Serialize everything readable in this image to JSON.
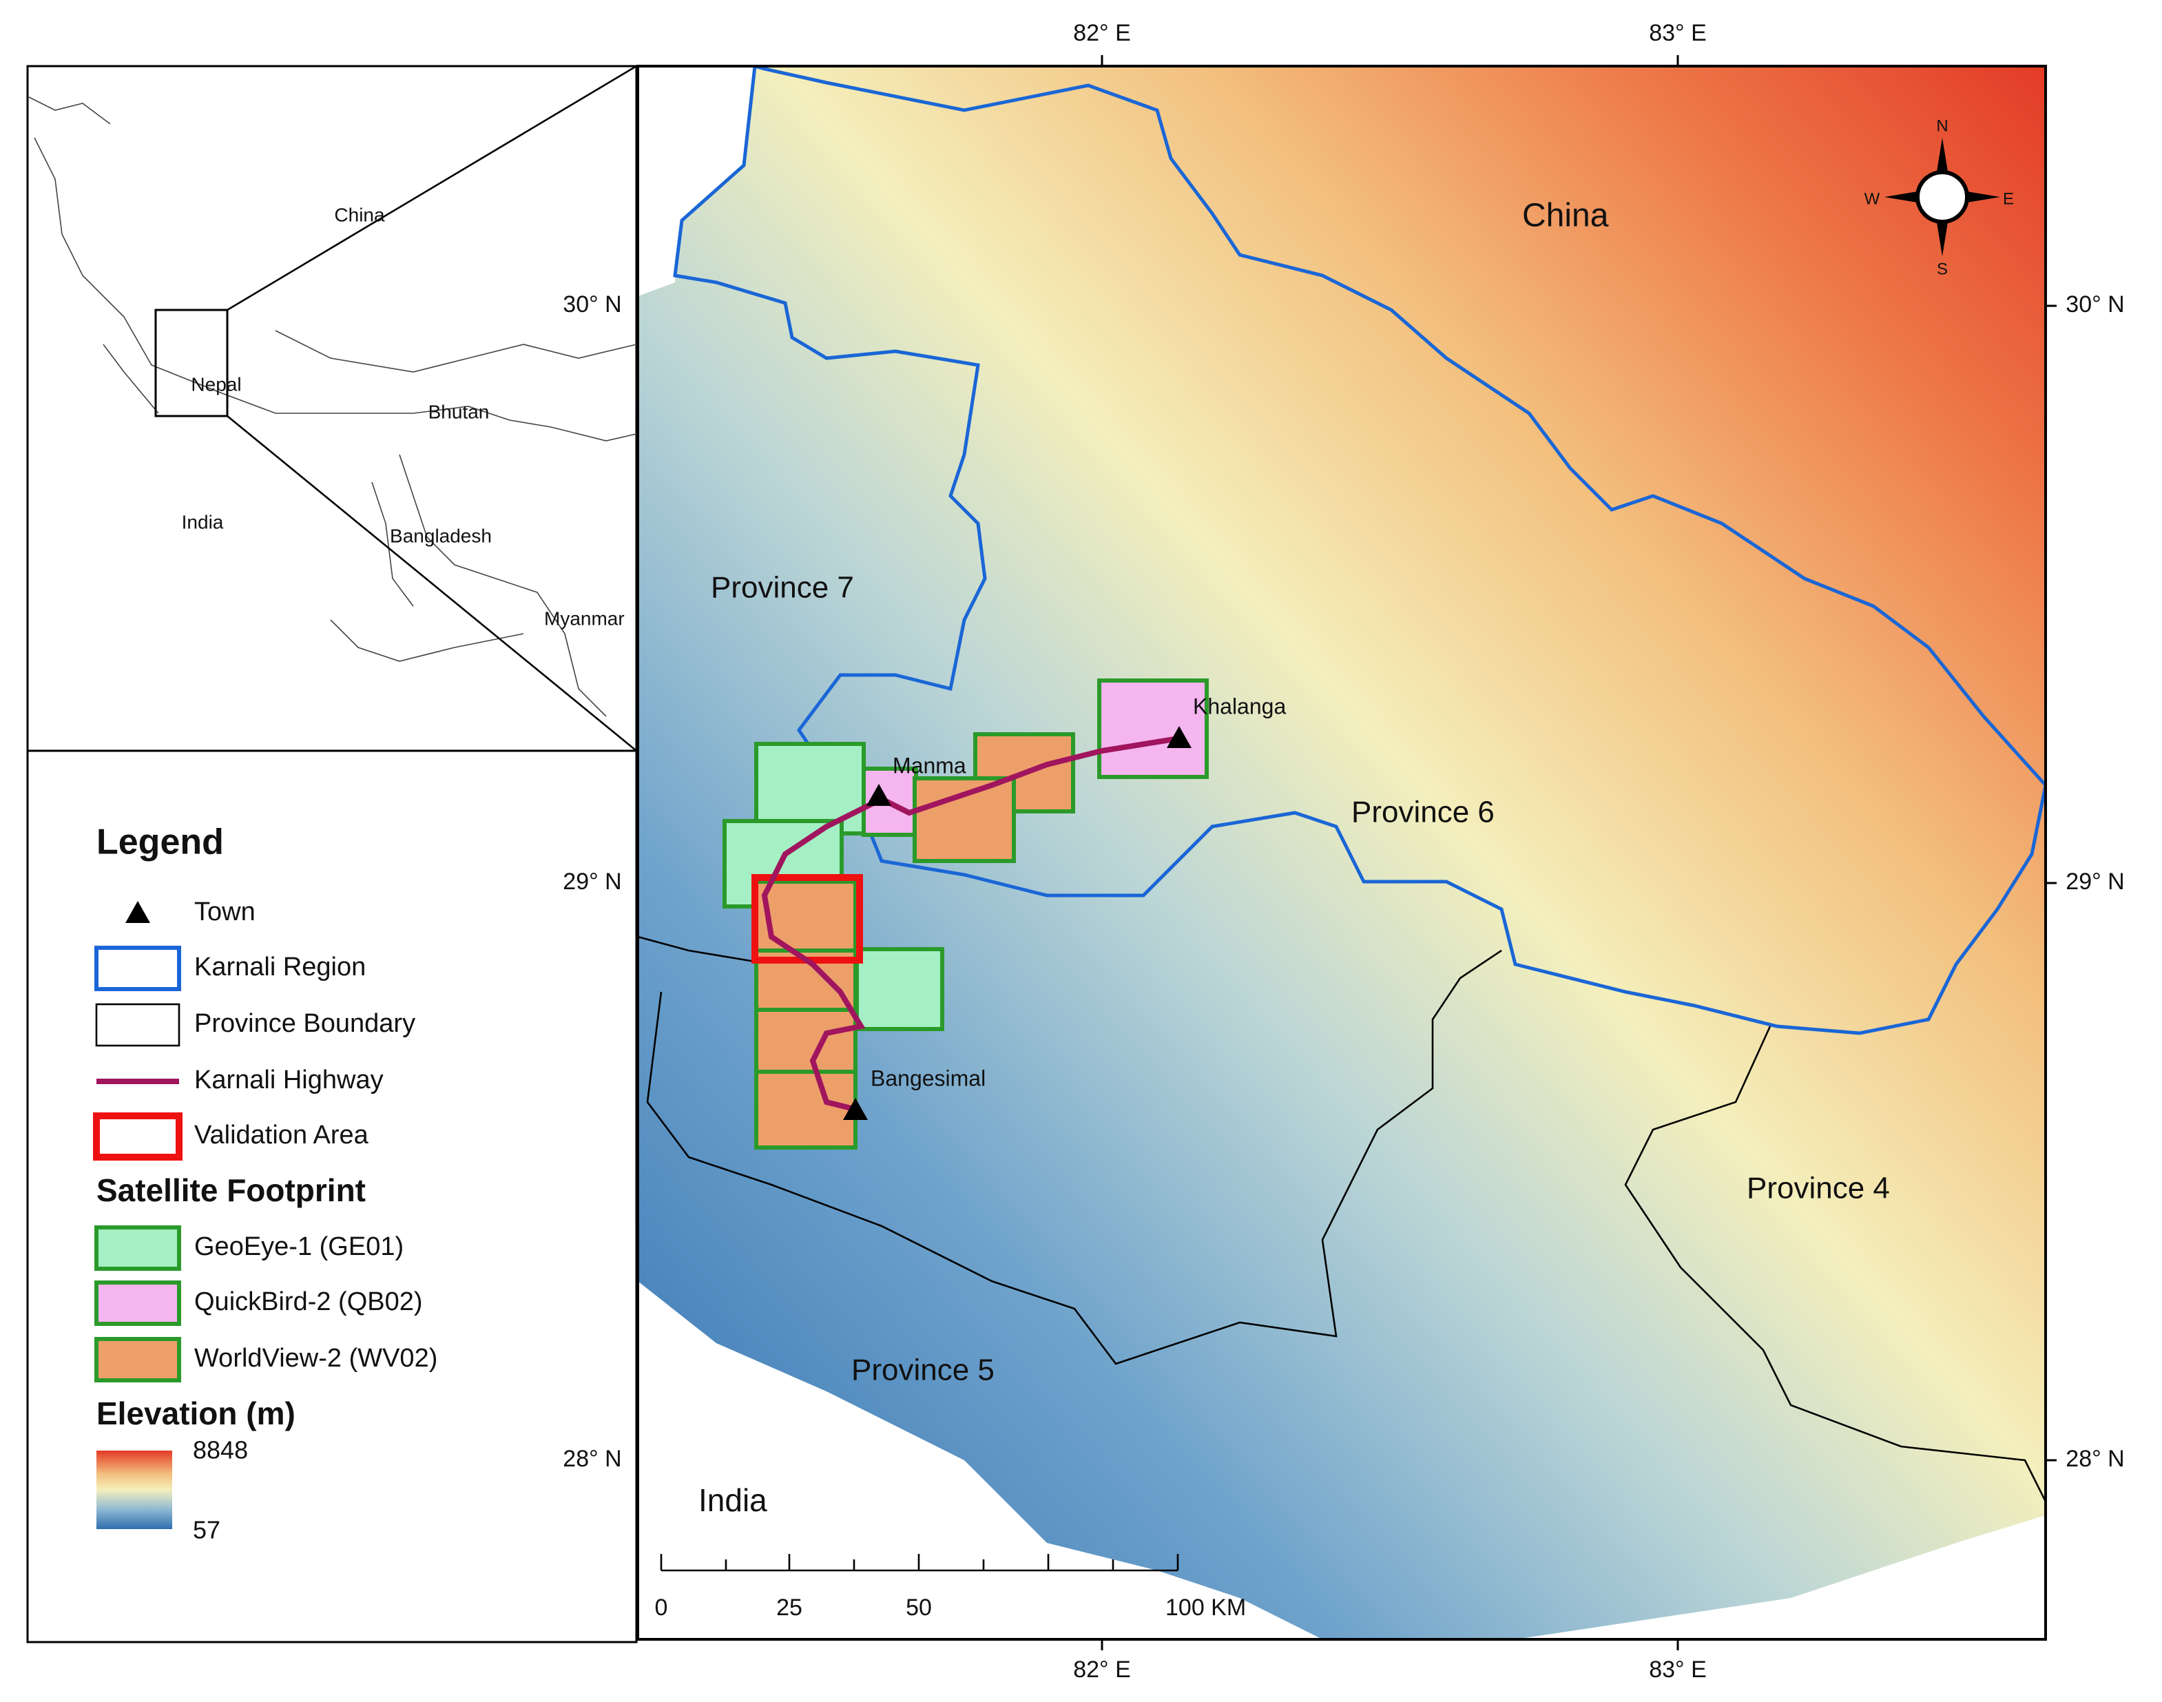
{
  "axes": {
    "top": [
      "82° E",
      "83° E"
    ],
    "bottom": [
      "82° E",
      "83° E"
    ],
    "left": [
      "30° N",
      "29° N",
      "28° N"
    ],
    "right": [
      "30° N",
      "29° N",
      "28° N"
    ]
  },
  "map_labels": {
    "china": "China",
    "india": "India",
    "province_7": "Province 7",
    "province_6": "Province 6",
    "province_5": "Province 5",
    "province_4": "Province 4"
  },
  "towns": [
    "Khalanga",
    "Manma",
    "Bangesimal"
  ],
  "compass": {
    "north": "N",
    "south": "S",
    "west": "W",
    "east": "E"
  },
  "scale_bar": {
    "labels": [
      0,
      25,
      50,
      "100 KM"
    ]
  },
  "inset": {
    "labels": [
      "China",
      "Nepal",
      "Bhutan",
      "India",
      "Bangladesh",
      "Myanmar"
    ]
  },
  "legend": {
    "title": "Legend",
    "items": [
      "Town",
      "Karnali Region",
      "Province Boundary",
      "Karnali Highway",
      "Validation Area"
    ],
    "footprint_title": "Satellite Footprint",
    "footprints": [
      "GeoEye-1 (GE01)",
      "QuickBird-2 (QB02)",
      "WorldView-2 (WV02)"
    ],
    "elevation_title": "Elevation (m)",
    "elevation_max": 8848,
    "elevation_min": 57
  }
}
